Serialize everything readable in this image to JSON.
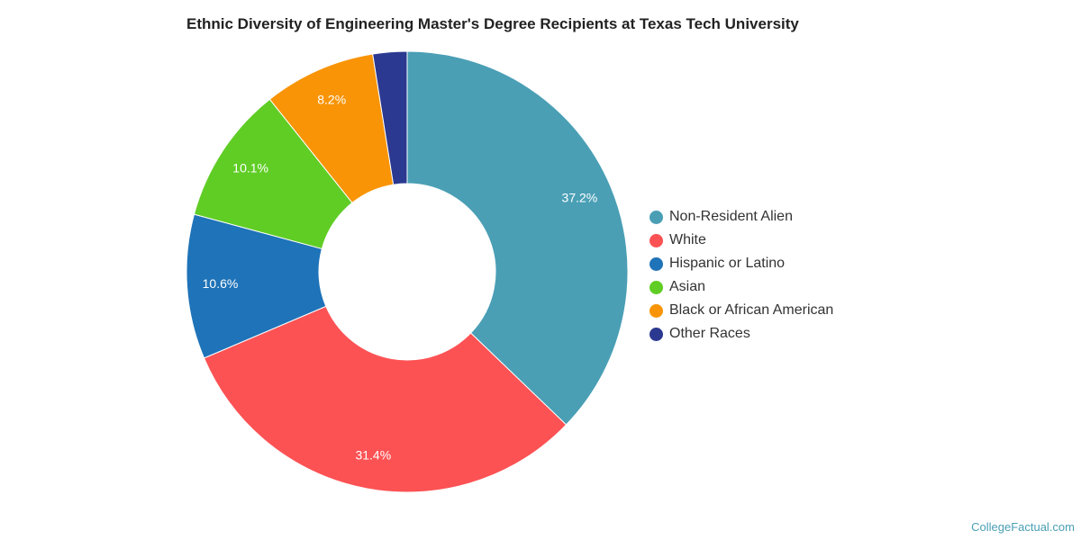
{
  "chart_data": {
    "type": "pie",
    "donut": true,
    "title": "Ethnic Diversity of Engineering Master's Degree Recipients at Texas Tech University",
    "legend_position": "right",
    "slices": [
      {
        "name": "Non-Resident Alien",
        "value": 37.2,
        "label": "37.2%",
        "color": "#4a9fb5"
      },
      {
        "name": "White",
        "value": 31.4,
        "label": "31.4%",
        "color": "#fc5254"
      },
      {
        "name": "Hispanic or Latino",
        "value": 10.6,
        "label": "10.6%",
        "color": "#1f73b8"
      },
      {
        "name": "Asian",
        "value": 10.1,
        "label": "10.1%",
        "color": "#60cd25"
      },
      {
        "name": "Black or African American",
        "value": 8.2,
        "label": "8.2%",
        "color": "#f89406"
      },
      {
        "name": "Other Races",
        "value": 2.5,
        "label": "",
        "color": "#2b3990"
      }
    ]
  },
  "credit": "CollegeFactual.com"
}
